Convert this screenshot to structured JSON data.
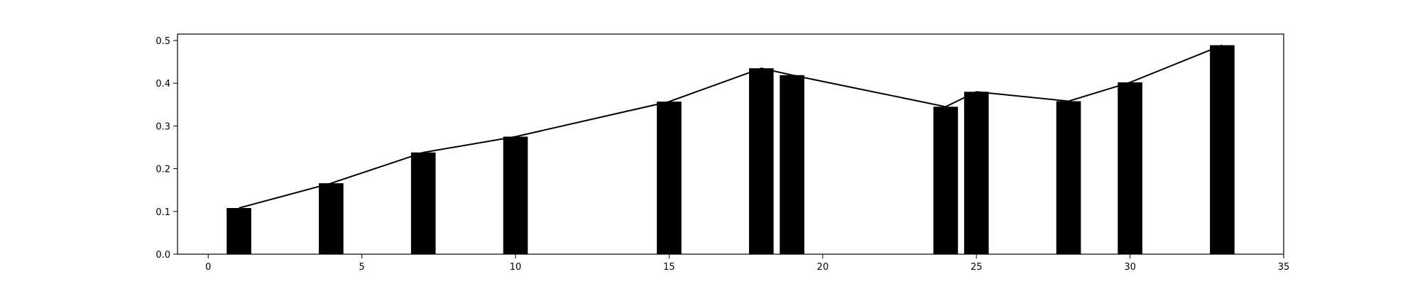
{
  "chart_data": {
    "type": "bar",
    "title": "",
    "xlabel": "",
    "ylabel": "",
    "xlim": [
      -1,
      35
    ],
    "ylim": [
      0,
      0.515
    ],
    "grid": false,
    "bar_color": "#000000",
    "line_color": "#000000",
    "bar_width": 0.8,
    "x": [
      1,
      4,
      7,
      10,
      15,
      18,
      19,
      24,
      25,
      28,
      30,
      33
    ],
    "values": [
      0.108,
      0.166,
      0.238,
      0.275,
      0.357,
      0.435,
      0.419,
      0.345,
      0.38,
      0.358,
      0.402,
      0.489
    ],
    "xticks": [
      0,
      5,
      10,
      15,
      20,
      25,
      30,
      35
    ],
    "yticks": [
      0.0,
      0.1,
      0.2,
      0.3,
      0.4,
      0.5
    ],
    "xtick_labels": [
      "0",
      "5",
      "10",
      "15",
      "20",
      "25",
      "30",
      "35"
    ],
    "ytick_labels": [
      "0.0",
      "0.1",
      "0.2",
      "0.3",
      "0.4",
      "0.5"
    ]
  }
}
